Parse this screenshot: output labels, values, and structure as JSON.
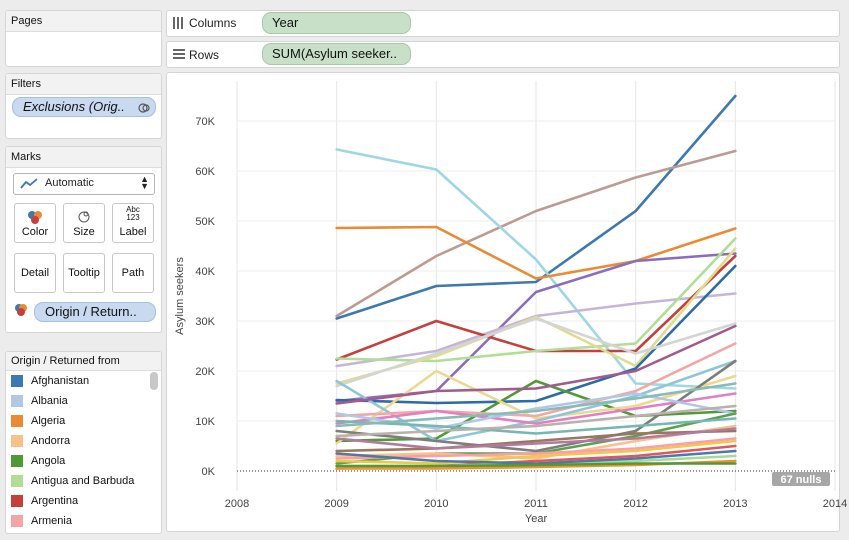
{
  "pages_panel": {
    "title": "Pages"
  },
  "filters_panel": {
    "title": "Filters",
    "filter_pill": "Exclusions (Orig.."
  },
  "marks_panel": {
    "title": "Marks",
    "mark_type": "Automatic",
    "buttons": {
      "color": "Color",
      "size": "Size",
      "label": "Label",
      "label_glyph_top": "Abc",
      "label_glyph_bottom": "123",
      "detail": "Detail",
      "tooltip": "Tooltip",
      "path": "Path"
    },
    "color_pill": "Origin / Return.."
  },
  "shelves": {
    "columns_label": "Columns",
    "columns_pill": "Year",
    "rows_label": "Rows",
    "rows_pill": "SUM(Asylum seeker.."
  },
  "legend": {
    "title": "Origin / Returned from",
    "items": [
      {
        "label": "Afghanistan",
        "color": "#3d78b0"
      },
      {
        "label": "Albania",
        "color": "#b0c8e6"
      },
      {
        "label": "Algeria",
        "color": "#ec8a34"
      },
      {
        "label": "Andorra",
        "color": "#f9c088"
      },
      {
        "label": "Angola",
        "color": "#4f9a37"
      },
      {
        "label": "Antigua and Barbuda",
        "color": "#b0de95"
      },
      {
        "label": "Argentina",
        "color": "#c5403d"
      },
      {
        "label": "Armenia",
        "color": "#f5a5a5"
      }
    ]
  },
  "chart_data": {
    "type": "line",
    "xlabel": "Year",
    "ylabel": "Asylum seekers",
    "x_ticks": [
      "2008",
      "2009",
      "2010",
      "2011",
      "2012",
      "2013",
      "2014"
    ],
    "y_ticks": [
      "0K",
      "10K",
      "20K",
      "30K",
      "40K",
      "50K",
      "60K",
      "70K"
    ],
    "xlim": [
      2008,
      2014
    ],
    "ylim": [
      0,
      78000
    ],
    "x": [
      2009,
      2010,
      2011,
      2012,
      2013
    ],
    "nulls_badge": "67 nulls",
    "series": [
      {
        "color": "#3d78b0",
        "values": [
          30500,
          37000,
          37800,
          52000,
          75000
        ]
      },
      {
        "color": "#bd9b93",
        "values": [
          31000,
          43000,
          52000,
          58700,
          64000
        ]
      },
      {
        "color": "#9fd6e3",
        "values": [
          64300,
          60300,
          42300,
          17500,
          16500
        ]
      },
      {
        "color": "#ec8a34",
        "values": [
          48600,
          48800,
          38500,
          42000,
          48500
        ]
      },
      {
        "color": "#8a6ebe",
        "values": [
          14000,
          16000,
          35800,
          42000,
          43500
        ]
      },
      {
        "color": "#c5b6d8",
        "values": [
          21000,
          24000,
          31000,
          33500,
          35500
        ]
      },
      {
        "color": "#c5403d",
        "values": [
          22300,
          30000,
          24000,
          24000,
          43000
        ]
      },
      {
        "color": "#b0de95",
        "values": [
          22500,
          22000,
          24000,
          25500,
          46500
        ]
      },
      {
        "color": "#dedc8e",
        "values": [
          17500,
          23000,
          30800,
          21000,
          44500
        ]
      },
      {
        "color": "#2e6aa6",
        "values": [
          14200,
          13600,
          14000,
          20500,
          41000
        ]
      },
      {
        "color": "#d4d4d4",
        "values": [
          17000,
          23500,
          30500,
          23500,
          29500
        ]
      },
      {
        "color": "#4f9a37",
        "values": [
          6000,
          6500,
          18000,
          11000,
          12000
        ]
      },
      {
        "color": "#ecd98f",
        "values": [
          5500,
          20000,
          10500,
          13000,
          19000
        ]
      },
      {
        "color": "#8fc5d8",
        "values": [
          18000,
          6000,
          10000,
          15000,
          22000
        ]
      },
      {
        "color": "#a35a8e",
        "values": [
          13500,
          16000,
          16500,
          20000,
          29000
        ]
      },
      {
        "color": "#f5a5a5",
        "values": [
          11000,
          12000,
          11000,
          16000,
          25500
        ]
      },
      {
        "color": "#7d7d7d",
        "values": [
          8000,
          6000,
          4000,
          8000,
          22000
        ]
      },
      {
        "color": "#e37ec1",
        "values": [
          9500,
          12000,
          9500,
          12500,
          15500
        ]
      },
      {
        "color": "#b0c8e6",
        "values": [
          11500,
          8500,
          12500,
          15500,
          11500
        ]
      },
      {
        "color": "#59a14f",
        "values": [
          1500,
          3500,
          3500,
          7000,
          11500
        ]
      },
      {
        "color": "#f9c088",
        "values": [
          3000,
          3500,
          2500,
          6000,
          9000
        ]
      },
      {
        "color": "#9c755f",
        "values": [
          4000,
          4500,
          6000,
          7500,
          8000
        ]
      },
      {
        "color": "#76b7b2",
        "values": [
          10000,
          9000,
          7500,
          9000,
          10500
        ]
      },
      {
        "color": "#edc948",
        "values": [
          2000,
          1500,
          3000,
          4000,
          6000
        ]
      },
      {
        "color": "#e15759",
        "values": [
          500,
          1000,
          2000,
          3000,
          5000
        ]
      },
      {
        "color": "#a6d89b",
        "values": [
          1000,
          1000,
          1500,
          2000,
          3000
        ]
      },
      {
        "color": "#ff9da7",
        "values": [
          2500,
          3000,
          3500,
          4500,
          6500
        ]
      },
      {
        "color": "#bab0ac",
        "values": [
          7000,
          8000,
          9000,
          11000,
          13000
        ]
      },
      {
        "color": "#b07aa1",
        "values": [
          6500,
          4500,
          5500,
          6500,
          8500
        ]
      },
      {
        "color": "#4e79a7",
        "values": [
          3500,
          2000,
          1500,
          2500,
          4000
        ]
      },
      {
        "color": "#f28e2b",
        "values": [
          500,
          500,
          800,
          1200,
          2000
        ]
      },
      {
        "color": "#86bcb6",
        "values": [
          9000,
          10500,
          12000,
          14500,
          17500
        ]
      },
      {
        "color": "#4f9a37",
        "values": [
          1000,
          1000,
          1200,
          1500,
          1500
        ]
      }
    ]
  }
}
